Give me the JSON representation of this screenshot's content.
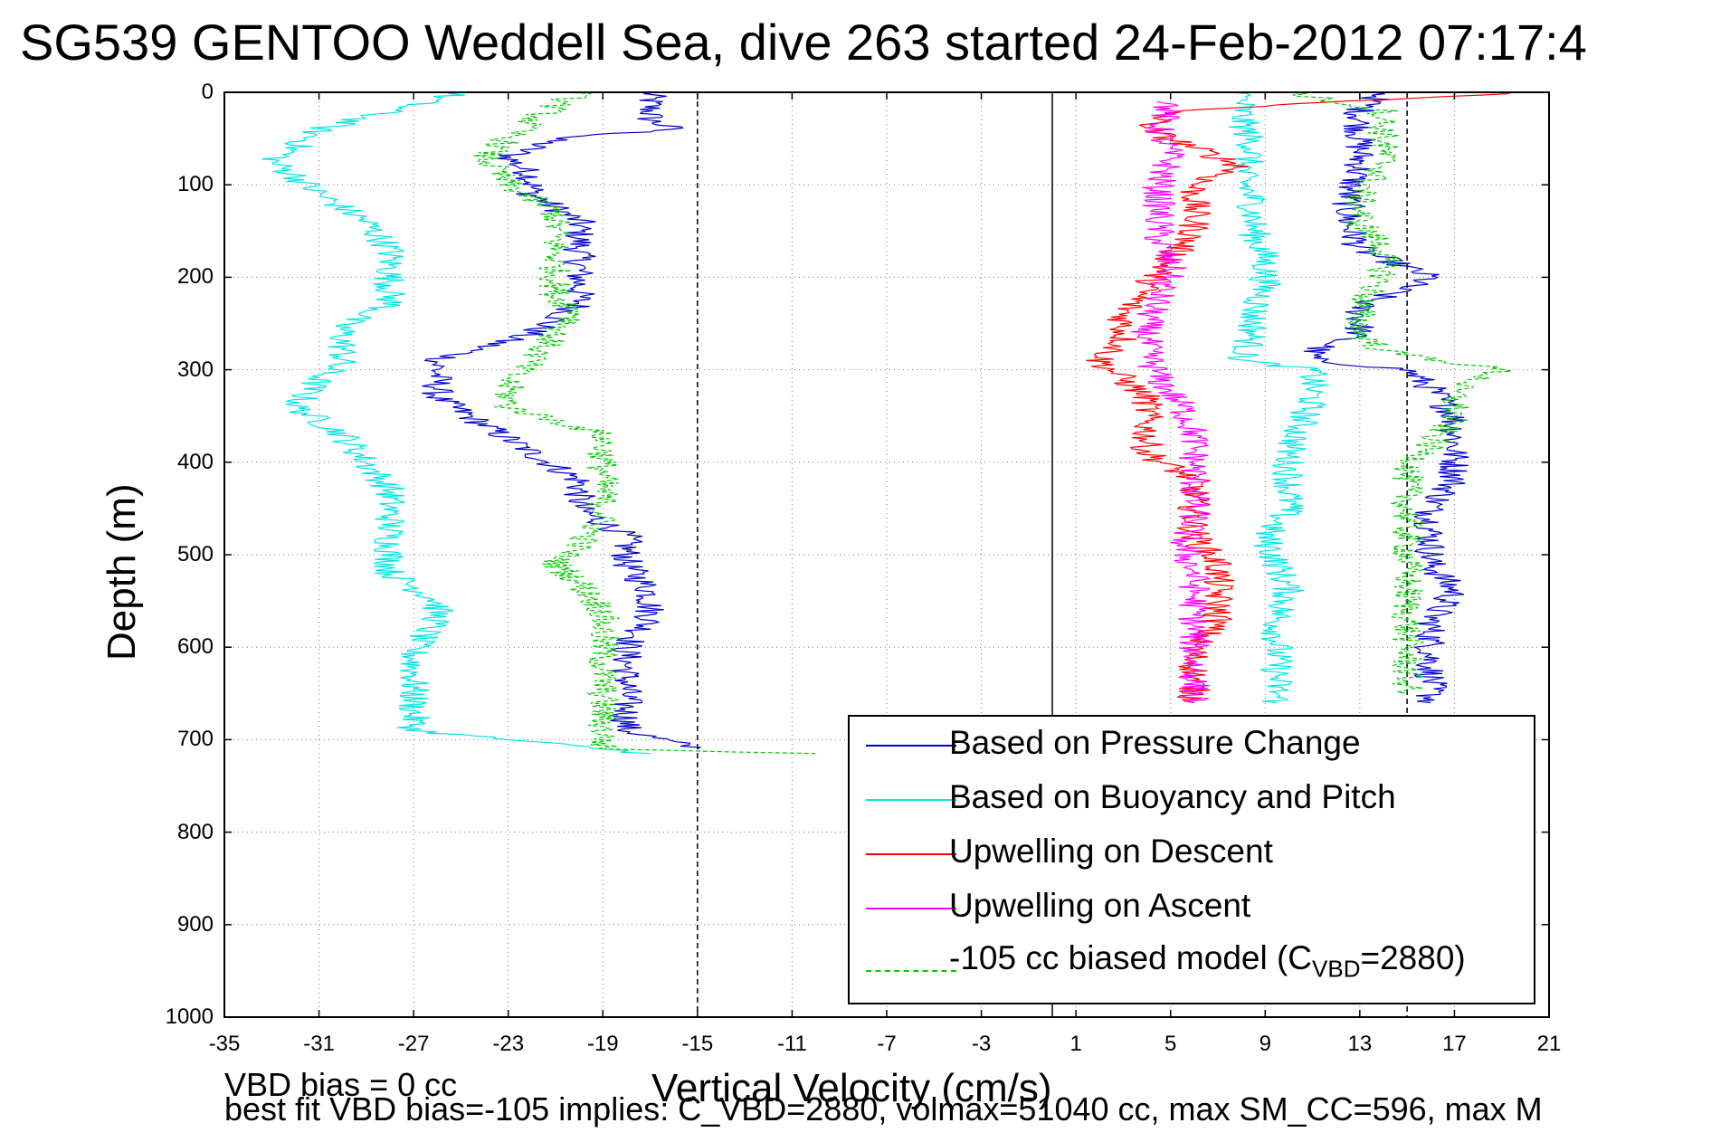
{
  "title": "SG539 GENTOO Weddell Sea, dive 263 started 24-Feb-2012 07:17:4",
  "footer": {
    "line1": "VBD bias = 0 cc",
    "line2": "best fit VBD bias=-105 implies: C_VBD=2880, volmax=51040 cc, max SM_CC=596, max M"
  },
  "legend": {
    "pressure": "Based on Pressure Change",
    "buoyancy": "Based on Buoyancy and Pitch",
    "descent": "Upwelling on Descent",
    "ascent": "Upwelling on Ascent",
    "model_prefix": "-105 cc biased model (C",
    "model_sub": "VBD",
    "model_suffix": "=2880)"
  },
  "chart_data": {
    "type": "line",
    "xlabel": "Vertical Velocity (cm/s)",
    "ylabel": "Depth (m)",
    "xlim": [
      -35,
      21
    ],
    "ylim": [
      1000,
      0
    ],
    "x_ticks": [
      "-35",
      "-31",
      "-27",
      "-23",
      "-19",
      "-15",
      "-11",
      "-7",
      "-3",
      "1",
      "5",
      "9",
      "13",
      "17",
      "21"
    ],
    "y_ticks": [
      "0",
      "100",
      "200",
      "300",
      "400",
      "500",
      "600",
      "700",
      "800",
      "900",
      "1000"
    ],
    "grid": true,
    "legend_position": "bottom-right",
    "reference_lines": [
      {
        "x": -15,
        "style": "dashed",
        "color": "#000000"
      },
      {
        "x": 0,
        "style": "solid",
        "color": "#000000"
      },
      {
        "x": 15,
        "style": "dashed",
        "color": "#000000"
      }
    ],
    "series": [
      {
        "name": "Based on Pressure Change",
        "color": "#0000cc",
        "style": "solid",
        "segments": [
          {
            "depth": [
              0,
              10,
              20,
              30,
              40,
              50,
              70,
              90,
              110,
              140,
              170,
              200,
              230,
              260,
              290,
              310,
              330,
              360,
              390,
              420,
              450,
              480,
              510,
              540,
              570,
              600,
              630,
              660,
              690,
              710
            ],
            "velocity": [
              -17,
              -17,
              -17,
              -17,
              -16,
              -21,
              -23,
              -22,
              -22,
              -20,
              -20,
              -20,
              -20,
              -22,
              -26,
              -26,
              -26,
              -24,
              -22,
              -20,
              -20,
              -18,
              -18,
              -17,
              -17,
              -18,
              -18,
              -18,
              -18,
              -15
            ]
          },
          {
            "depth": [
              0,
              20,
              50,
              80,
              110,
              140,
              170,
              200,
              230,
              260,
              280,
              290,
              300,
              320,
              350,
              370,
              390,
              420,
              450,
              480,
              510,
              540,
              570,
              600,
              630,
              660
            ],
            "velocity": [
              14,
              13,
              13,
              13,
              12.5,
              12.5,
              13,
              16,
              13,
              13,
              11,
              11,
              15,
              16,
              17,
              17,
              17,
              17,
              16,
              16,
              16,
              17,
              16,
              16,
              16,
              16
            ]
          }
        ]
      },
      {
        "name": "Based on Buoyancy and Pitch",
        "color": "#00e5e5",
        "style": "solid",
        "segments": [
          {
            "depth": [
              0,
              40,
              60,
              75,
              90,
              110,
              140,
              170,
              200,
              230,
              250,
              290,
              310,
              340,
              370,
              400,
              430,
              460,
              490,
              520,
              550,
              570,
              600,
              630,
              660,
              690,
              715
            ],
            "velocity": [
              -25,
              -31,
              -32,
              -33,
              -32,
              -31,
              -29,
              -28,
              -28,
              -28,
              -30,
              -30,
              -31,
              -32,
              -30,
              -29,
              -28,
              -28,
              -28,
              -28,
              -26,
              -26,
              -27,
              -27,
              -27,
              -27,
              -17
            ]
          },
          {
            "depth": [
              0,
              30,
              60,
              90,
              120,
              150,
              180,
              210,
              240,
              260,
              290,
              300,
              330,
              360,
              390,
              420,
              450,
              480,
              510,
              540,
              570,
              600,
              630,
              660
            ],
            "velocity": [
              8,
              8,
              8.5,
              8,
              8.5,
              8.5,
              9,
              9,
              8.5,
              8.5,
              8,
              11,
              11,
              10.5,
              10,
              10,
              10,
              9,
              9.5,
              10,
              9.5,
              9.5,
              9.5,
              9.5
            ]
          }
        ]
      },
      {
        "name": "Upwelling on Descent",
        "color": "#ff0000",
        "style": "solid",
        "segments": [
          {
            "depth": [
              0,
              20,
              40,
              60,
              80,
              100,
              120,
              150,
              180,
              210,
              240,
              270,
              290,
              310,
              330,
              360,
              390,
              420,
              450,
              480,
              510,
              540,
              570,
              600,
              630,
              660
            ],
            "velocity": [
              20,
              5,
              4,
              6,
              8,
              6,
              6,
              6,
              5,
              4,
              3,
              3,
              2,
              3,
              4,
              4,
              4,
              6,
              6,
              6,
              7,
              7,
              7,
              6,
              6,
              6
            ]
          }
        ]
      },
      {
        "name": "Upwelling on Ascent",
        "color": "#ff00ff",
        "style": "solid",
        "segments": [
          {
            "depth": [
              10,
              40,
              70,
              100,
              130,
              160,
              190,
              220,
              250,
              280,
              310,
              340,
              370,
              400,
              430,
              460,
              490,
              520,
              550,
              580,
              610,
              640,
              660
            ],
            "velocity": [
              5,
              4.5,
              5,
              4.5,
              4.5,
              4.5,
              5,
              4.5,
              4,
              4,
              4.5,
              5.5,
              6,
              6,
              6,
              6,
              5.5,
              6,
              6,
              6,
              6,
              6,
              6
            ]
          }
        ]
      },
      {
        "name": "-105 cc biased model (CVBD=2880)",
        "color": "#00cc00",
        "style": "dashed",
        "segments": [
          {
            "depth": [
              0,
              30,
              50,
              70,
              100,
              130,
              160,
              190,
              220,
              240,
              260,
              290,
              310,
              340,
              370,
              400,
              430,
              460,
              490,
              510,
              530,
              560,
              590,
              620,
              650,
              680,
              710,
              715
            ],
            "velocity": [
              -20,
              -22,
              -23,
              -24,
              -23,
              -21,
              -21,
              -21,
              -21,
              -20,
              -21,
              -22,
              -23,
              -23,
              -19,
              -19,
              -19,
              -19,
              -20,
              -21,
              -20,
              -19,
              -19,
              -19,
              -19,
              -19,
              -19,
              -10
            ]
          },
          {
            "depth": [
              0,
              20,
              50,
              80,
              110,
              140,
              170,
              200,
              230,
              260,
              280,
              300,
              320,
              350,
              380,
              410,
              440,
              470,
              500,
              530,
              560,
              590,
              620,
              650
            ],
            "velocity": [
              10,
              14,
              14,
              14,
              13,
              13,
              14,
              14,
              13,
              13,
              14,
              19,
              17,
              17,
              16,
              15,
              15,
              15,
              15,
              15,
              15,
              15,
              15,
              15
            ]
          }
        ]
      }
    ]
  }
}
